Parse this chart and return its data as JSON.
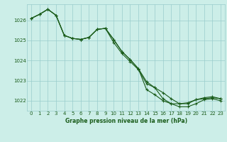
{
  "title": "Graphe pression niveau de la mer (hPa)",
  "bg_color": "#cceee8",
  "grid_color": "#99cccc",
  "line_color": "#1a5c1a",
  "xlim": [
    -0.5,
    23.5
  ],
  "ylim": [
    1021.5,
    1026.8
  ],
  "yticks": [
    1022,
    1023,
    1024,
    1025,
    1026
  ],
  "xticks": [
    0,
    1,
    2,
    3,
    4,
    5,
    6,
    7,
    8,
    9,
    10,
    11,
    12,
    13,
    14,
    15,
    16,
    17,
    18,
    19,
    20,
    21,
    22,
    23
  ],
  "series1_x": [
    0,
    1,
    2,
    3,
    4,
    5,
    6,
    7,
    8,
    9,
    10,
    11,
    12,
    13,
    14,
    15,
    16,
    17,
    18,
    19,
    20,
    21,
    22,
    23
  ],
  "series1": [
    1026.1,
    1026.3,
    1026.55,
    1026.25,
    1025.25,
    1025.1,
    1025.05,
    1025.15,
    1025.55,
    1025.6,
    1024.9,
    1024.35,
    1023.95,
    1023.55,
    1022.85,
    1022.65,
    1022.4,
    1022.1,
    1021.85,
    1021.85,
    1022.05,
    1022.1,
    1022.15,
    1022.1
  ],
  "series2_x": [
    0,
    1,
    2,
    3,
    4,
    5,
    6,
    7,
    8,
    9,
    10,
    11,
    12,
    13,
    14,
    15,
    16,
    17,
    18,
    19,
    20,
    21,
    22,
    23
  ],
  "series2": [
    1026.1,
    1026.3,
    1026.55,
    1026.25,
    1025.25,
    1025.1,
    1025.05,
    1025.15,
    1025.55,
    1025.6,
    1025.05,
    1024.45,
    1024.05,
    1023.6,
    1022.95,
    1022.65,
    1022.1,
    1021.85,
    1021.85,
    1021.9,
    1022.05,
    1022.15,
    1022.2,
    1022.1
  ],
  "series3_x": [
    0,
    1,
    2,
    3,
    4,
    5,
    6,
    7,
    8,
    9,
    10,
    11,
    12,
    13,
    14,
    15,
    16,
    17,
    18,
    19,
    20,
    21,
    22,
    23
  ],
  "series3": [
    1026.1,
    1026.3,
    1026.55,
    1026.25,
    1025.25,
    1025.1,
    1025.05,
    1025.15,
    1025.55,
    1025.6,
    1025.05,
    1024.45,
    1024.05,
    1023.6,
    1022.55,
    1022.3,
    1022.0,
    1021.85,
    1021.7,
    1021.7,
    1021.85,
    1022.05,
    1022.1,
    1022.0
  ]
}
